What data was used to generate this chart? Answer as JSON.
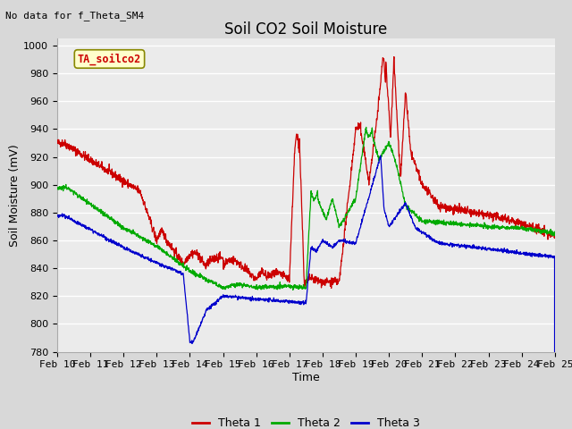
{
  "title": "Soil CO2 Soil Moisture",
  "xlabel": "Time",
  "ylabel": "Soil Moisture (mV)",
  "top_left_text": "No data for f_Theta_SM4",
  "box_label": "TA_soilco2",
  "ylim": [
    780,
    1005
  ],
  "yticks": [
    780,
    800,
    820,
    840,
    860,
    880,
    900,
    920,
    940,
    960,
    980,
    1000
  ],
  "x_labels": [
    "Feb 10",
    "Feb 11",
    "Feb 12",
    "Feb 13",
    "Feb 14",
    "Feb 15",
    "Feb 16",
    "Feb 17",
    "Feb 18",
    "Feb 19",
    "Feb 20",
    "Feb 21",
    "Feb 22",
    "Feb 23",
    "Feb 24",
    "Feb 25"
  ],
  "background_color": "#d8d8d8",
  "plot_bg_color": "#ebebeb",
  "grid_color": "#ffffff",
  "legend_labels": [
    "Theta 1",
    "Theta 2",
    "Theta 3"
  ],
  "line_colors": [
    "#cc0000",
    "#00aa00",
    "#0000cc"
  ],
  "title_fontsize": 12,
  "axis_label_fontsize": 9,
  "tick_fontsize": 8,
  "legend_fontsize": 9
}
